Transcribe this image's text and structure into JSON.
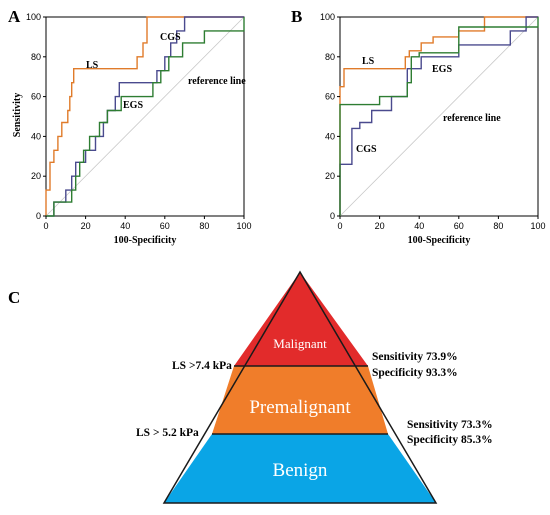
{
  "panels": {
    "a": "A",
    "b": "B",
    "c": "C"
  },
  "chart_data": [
    {
      "type": "line",
      "panel": "A",
      "xlabel": "100-Specificity",
      "ylabel": "Sensitivity",
      "xlim": [
        0,
        100
      ],
      "ylim": [
        0,
        100
      ],
      "xticks": [
        0,
        20,
        40,
        60,
        80,
        100
      ],
      "yticks": [
        0,
        20,
        40,
        60,
        80,
        100
      ],
      "series": [
        {
          "name": "LS",
          "color": "#e07b2a",
          "points": [
            [
              0,
              0
            ],
            [
              0,
              13
            ],
            [
              2,
              13
            ],
            [
              2,
              27
            ],
            [
              4,
              27
            ],
            [
              4,
              33
            ],
            [
              6,
              33
            ],
            [
              6,
              40
            ],
            [
              8,
              40
            ],
            [
              8,
              47
            ],
            [
              11,
              47
            ],
            [
              11,
              53
            ],
            [
              12,
              53
            ],
            [
              12,
              60
            ],
            [
              13,
              60
            ],
            [
              13,
              67
            ],
            [
              14,
              67
            ],
            [
              14,
              74
            ],
            [
              46,
              74
            ],
            [
              46,
              80
            ],
            [
              49,
              80
            ],
            [
              49,
              87
            ],
            [
              51,
              87
            ],
            [
              51,
              100
            ],
            [
              100,
              100
            ]
          ]
        },
        {
          "name": "CGS",
          "color": "#4a4a8e",
          "points": [
            [
              0,
              0
            ],
            [
              4,
              0
            ],
            [
              4,
              7
            ],
            [
              10,
              7
            ],
            [
              10,
              13
            ],
            [
              13,
              13
            ],
            [
              13,
              20
            ],
            [
              15,
              20
            ],
            [
              15,
              27
            ],
            [
              20,
              27
            ],
            [
              20,
              33
            ],
            [
              25,
              33
            ],
            [
              25,
              40
            ],
            [
              29,
              40
            ],
            [
              29,
              47
            ],
            [
              31,
              47
            ],
            [
              31,
              53
            ],
            [
              35,
              53
            ],
            [
              35,
              60
            ],
            [
              37,
              60
            ],
            [
              37,
              67
            ],
            [
              56,
              67
            ],
            [
              56,
              73
            ],
            [
              60,
              73
            ],
            [
              60,
              80
            ],
            [
              63,
              80
            ],
            [
              63,
              87
            ],
            [
              66,
              87
            ],
            [
              66,
              93
            ],
            [
              70,
              93
            ],
            [
              70,
              100
            ],
            [
              100,
              100
            ]
          ]
        },
        {
          "name": "EGS",
          "color": "#2e7d32",
          "points": [
            [
              0,
              0
            ],
            [
              4,
              0
            ],
            [
              4,
              7
            ],
            [
              13,
              7
            ],
            [
              13,
              13
            ],
            [
              15,
              13
            ],
            [
              15,
              20
            ],
            [
              17,
              20
            ],
            [
              17,
              27
            ],
            [
              19,
              27
            ],
            [
              19,
              33
            ],
            [
              22,
              33
            ],
            [
              22,
              40
            ],
            [
              27,
              40
            ],
            [
              27,
              47
            ],
            [
              31,
              47
            ],
            [
              31,
              53
            ],
            [
              38,
              53
            ],
            [
              38,
              60
            ],
            [
              54,
              60
            ],
            [
              54,
              67
            ],
            [
              58,
              67
            ],
            [
              58,
              73
            ],
            [
              62,
              73
            ],
            [
              62,
              80
            ],
            [
              69,
              80
            ],
            [
              69,
              87
            ],
            [
              80,
              87
            ],
            [
              80,
              93
            ],
            [
              100,
              93
            ],
            [
              100,
              100
            ]
          ]
        },
        {
          "name": "reference line",
          "color": "#c8c8c8",
          "points": [
            [
              0,
              0
            ],
            [
              100,
              100
            ]
          ]
        }
      ]
    },
    {
      "type": "line",
      "panel": "B",
      "xlabel": "100-Specificity",
      "ylabel": "",
      "xlim": [
        0,
        100
      ],
      "ylim": [
        0,
        100
      ],
      "xticks": [
        0,
        20,
        40,
        60,
        80,
        100
      ],
      "yticks": [
        0,
        20,
        40,
        60,
        80,
        100
      ],
      "series": [
        {
          "name": "LS",
          "color": "#e07b2a",
          "points": [
            [
              0,
              0
            ],
            [
              0,
              65
            ],
            [
              2,
              65
            ],
            [
              2,
              74
            ],
            [
              33,
              74
            ],
            [
              33,
              80
            ],
            [
              35,
              80
            ],
            [
              35,
              83
            ],
            [
              41,
              83
            ],
            [
              41,
              87
            ],
            [
              47,
              87
            ],
            [
              47,
              90
            ],
            [
              60,
              90
            ],
            [
              60,
              93
            ],
            [
              73,
              93
            ],
            [
              73,
              100
            ],
            [
              100,
              100
            ]
          ]
        },
        {
          "name": "CGS",
          "color": "#4a4a8e",
          "points": [
            [
              0,
              0
            ],
            [
              0,
              26
            ],
            [
              6,
              26
            ],
            [
              6,
              44
            ],
            [
              10,
              44
            ],
            [
              10,
              47
            ],
            [
              16,
              47
            ],
            [
              16,
              53
            ],
            [
              26,
              53
            ],
            [
              26,
              60
            ],
            [
              34,
              60
            ],
            [
              34,
              74
            ],
            [
              41,
              74
            ],
            [
              41,
              80
            ],
            [
              60,
              80
            ],
            [
              60,
              86
            ],
            [
              86,
              86
            ],
            [
              86,
              93
            ],
            [
              94,
              93
            ],
            [
              94,
              100
            ],
            [
              100,
              100
            ]
          ]
        },
        {
          "name": "EGS",
          "color": "#2e7d32",
          "points": [
            [
              0,
              0
            ],
            [
              0,
              56
            ],
            [
              20,
              56
            ],
            [
              20,
              60
            ],
            [
              34,
              60
            ],
            [
              34,
              67
            ],
            [
              36,
              67
            ],
            [
              36,
              80
            ],
            [
              40,
              80
            ],
            [
              40,
              82
            ],
            [
              60,
              82
            ],
            [
              60,
              95
            ],
            [
              100,
              95
            ],
            [
              100,
              100
            ]
          ]
        },
        {
          "name": "reference line",
          "color": "#c8c8c8",
          "points": [
            [
              0,
              0
            ],
            [
              100,
              100
            ]
          ]
        }
      ]
    }
  ],
  "pyramid": {
    "tiers": [
      {
        "label": "Malignant",
        "color": "#e22b2b"
      },
      {
        "label": "Premalignant",
        "color": "#f07d2a"
      },
      {
        "label": "Benign",
        "color": "#0aa5e6"
      }
    ],
    "thresholds": [
      {
        "label": "LS >7.4 kPa",
        "sensitivity": "Sensitivity 73.9%",
        "specificity": "Specificity 93.3%"
      },
      {
        "label": "LS > 5.2 kPa",
        "sensitivity": "Sensitivity 73.3%",
        "specificity": "Specificity 85.3%"
      }
    ]
  }
}
